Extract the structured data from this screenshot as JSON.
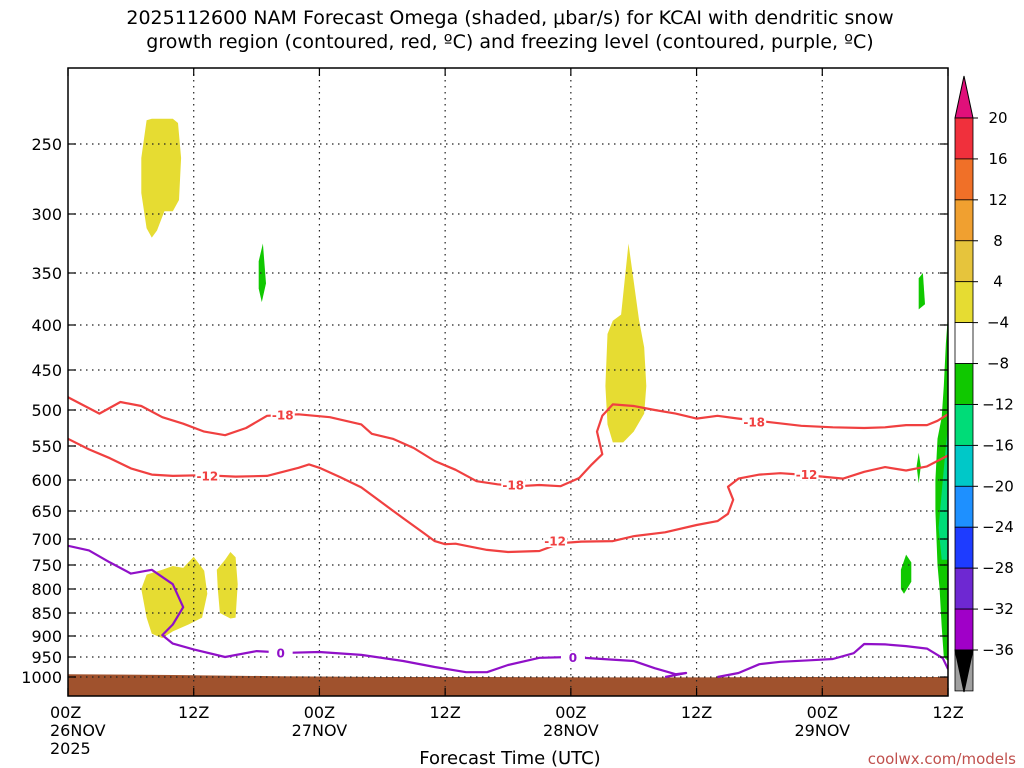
{
  "chart_data": {
    "type": "time-height cross-section (shaded + contours)",
    "title_line1": "2025112600 NAM Forecast Omega (shaded, μbar/s) for KCAI with dendritic snow",
    "title_line2": "growth region (contoured, red, ºC) and freezing level (contoured, purple, ºC)",
    "xlabel": "Forecast Time (UTC)",
    "credit": "coolwx.com/models",
    "x_range_hours": [
      0,
      84
    ],
    "x_ticks": [
      {
        "hour": 0,
        "lines": [
          "00Z",
          "26NOV",
          "2025"
        ]
      },
      {
        "hour": 12,
        "lines": [
          "12Z"
        ]
      },
      {
        "hour": 24,
        "lines": [
          "00Z",
          "27NOV"
        ]
      },
      {
        "hour": 36,
        "lines": [
          "12Z"
        ]
      },
      {
        "hour": 48,
        "lines": [
          "00Z",
          "28NOV"
        ]
      },
      {
        "hour": 60,
        "lines": [
          "12Z"
        ]
      },
      {
        "hour": 72,
        "lines": [
          "00Z",
          "29NOV"
        ]
      },
      {
        "hour": 84,
        "lines": [
          "12Z"
        ]
      }
    ],
    "y_range_hpa": [
      1050,
      200
    ],
    "y_ticks_hpa": [
      250,
      300,
      350,
      400,
      450,
      500,
      550,
      600,
      650,
      700,
      750,
      800,
      850,
      900,
      950,
      1000
    ],
    "y_tick_labels": [
      "250",
      "300",
      "350",
      "400",
      "450",
      "500",
      "550",
      "600",
      "650",
      "700",
      "750",
      "800",
      "850",
      "900",
      "950",
      "1000"
    ],
    "grid": true,
    "colorbar": {
      "labels": [
        "20",
        "16",
        "12",
        "8",
        "4",
        "−4",
        "−8",
        "−12",
        "−16",
        "−20",
        "−24",
        "−28",
        "−32",
        "−36"
      ],
      "top_color": "#e0107a",
      "bottom_color": "#000000",
      "bins": [
        {
          "color": "#f0303c"
        },
        {
          "color": "#f07028"
        },
        {
          "color": "#f0a030"
        },
        {
          "color": "#e6c43c"
        },
        {
          "color": "#e6dc32"
        },
        {
          "color": "#ffffff"
        },
        {
          "color": "#10c800"
        },
        {
          "color": "#00dc78"
        },
        {
          "color": "#00c8c8"
        },
        {
          "color": "#1e90ff"
        },
        {
          "color": "#1e3cff"
        },
        {
          "color": "#6e28d2"
        },
        {
          "color": "#a000c8"
        },
        {
          "color": "#a0a0a0"
        }
      ]
    },
    "contours": [
      {
        "name": "-18",
        "color": "#f04040",
        "labels": [
          {
            "text": "-18",
            "hour": 20.5,
            "p": 507
          },
          {
            "text": "-18",
            "hour": 42.5,
            "p": 608
          },
          {
            "text": "-18",
            "hour": 65.5,
            "p": 517
          }
        ],
        "points": [
          [
            0,
            484
          ],
          [
            3,
            505
          ],
          [
            5,
            490
          ],
          [
            7,
            495
          ],
          [
            9,
            510
          ],
          [
            11,
            519
          ],
          [
            13,
            530
          ],
          [
            15,
            535
          ],
          [
            17,
            525
          ],
          [
            19,
            508
          ],
          [
            22,
            506
          ],
          [
            25,
            510
          ],
          [
            28,
            520
          ],
          [
            29,
            533
          ],
          [
            31,
            540
          ],
          [
            33,
            553
          ],
          [
            35,
            572
          ],
          [
            37,
            585
          ],
          [
            39,
            602
          ],
          [
            41,
            607
          ],
          [
            43,
            610
          ],
          [
            45,
            608
          ],
          [
            47,
            610
          ],
          [
            48.8,
            597
          ],
          [
            50,
            577
          ],
          [
            51,
            562
          ],
          [
            50.5,
            530
          ],
          [
            51,
            508
          ],
          [
            52,
            493
          ],
          [
            54,
            495
          ],
          [
            56,
            500
          ],
          [
            58,
            505
          ],
          [
            60,
            512
          ],
          [
            62,
            508
          ],
          [
            64,
            512
          ],
          [
            67,
            517
          ],
          [
            70,
            522
          ],
          [
            73,
            524
          ],
          [
            76,
            525
          ],
          [
            78,
            524
          ],
          [
            80,
            521
          ],
          [
            82,
            521
          ],
          [
            83,
            515
          ],
          [
            84,
            506
          ]
        ]
      },
      {
        "name": "-12",
        "color": "#f04040",
        "labels": [
          {
            "text": "-12",
            "hour": 13.3,
            "p": 594
          },
          {
            "text": "-12",
            "hour": 46.5,
            "p": 704
          },
          {
            "text": "-12",
            "hour": 70.5,
            "p": 592
          }
        ],
        "points": [
          [
            0,
            540
          ],
          [
            2,
            555
          ],
          [
            4,
            568
          ],
          [
            6,
            583
          ],
          [
            8,
            592
          ],
          [
            10,
            594
          ],
          [
            13,
            593
          ],
          [
            16,
            595
          ],
          [
            19,
            594
          ],
          [
            22,
            582
          ],
          [
            23,
            577
          ],
          [
            24,
            582
          ],
          [
            26,
            596
          ],
          [
            28,
            612
          ],
          [
            30,
            637
          ],
          [
            32,
            663
          ],
          [
            34,
            690
          ],
          [
            35,
            704
          ],
          [
            36,
            710
          ],
          [
            37,
            709
          ],
          [
            38,
            713
          ],
          [
            40,
            721
          ],
          [
            42,
            725
          ],
          [
            45,
            723
          ],
          [
            47,
            708
          ],
          [
            49,
            705
          ],
          [
            52,
            704
          ],
          [
            54,
            695
          ],
          [
            57,
            688
          ],
          [
            60,
            675
          ],
          [
            62,
            668
          ],
          [
            63,
            655
          ],
          [
            63.5,
            632
          ],
          [
            63,
            611
          ],
          [
            64,
            598
          ],
          [
            66,
            592
          ],
          [
            68,
            590
          ],
          [
            70,
            592
          ],
          [
            72,
            595
          ],
          [
            74,
            598
          ],
          [
            76,
            588
          ],
          [
            78,
            581
          ],
          [
            80,
            586
          ],
          [
            82,
            580
          ],
          [
            84,
            564
          ]
        ]
      },
      {
        "name": "0",
        "color": "#9010c8",
        "labels": [
          {
            "text": "0",
            "hour": 20.3,
            "p": 940
          },
          {
            "text": "0",
            "hour": 48.2,
            "p": 951
          }
        ],
        "points": [
          [
            0,
            713
          ],
          [
            2,
            722
          ],
          [
            4,
            745
          ],
          [
            6,
            768
          ],
          [
            8,
            760
          ],
          [
            10,
            790
          ],
          [
            11,
            838
          ],
          [
            10,
            875
          ],
          [
            9,
            898
          ],
          [
            10,
            918
          ],
          [
            12,
            932
          ],
          [
            15,
            950
          ],
          [
            18,
            936
          ],
          [
            21,
            940
          ],
          [
            24,
            938
          ],
          [
            28,
            945
          ],
          [
            32,
            960
          ],
          [
            35,
            975
          ],
          [
            38,
            988
          ],
          [
            40,
            988
          ],
          [
            42,
            970
          ],
          [
            45,
            952
          ],
          [
            48,
            950
          ],
          [
            51,
            955
          ],
          [
            54,
            960
          ],
          [
            56,
            978
          ],
          [
            58,
            993
          ],
          [
            59,
            990
          ],
          [
            57,
            1000
          ]
        ]
      },
      {
        "name": "0b",
        "color": "#9010c8",
        "labels": [],
        "points": [
          [
            62,
            1000
          ],
          [
            64,
            990
          ],
          [
            66,
            968
          ],
          [
            68,
            962
          ],
          [
            71,
            958
          ],
          [
            73,
            955
          ],
          [
            75,
            941
          ],
          [
            76,
            919
          ],
          [
            78,
            920
          ],
          [
            80,
            924
          ],
          [
            82,
            930
          ],
          [
            83.5,
            953
          ],
          [
            84,
            980
          ]
        ]
      }
    ],
    "shaded_regions": [
      {
        "name": "omega-positive-4-8",
        "color": "#e6dc32",
        "points": [
          [
            7,
            260
          ],
          [
            7.5,
            233
          ],
          [
            8,
            232
          ],
          [
            10,
            232
          ],
          [
            10.5,
            235
          ],
          [
            10.8,
            260
          ],
          [
            10.6,
            290
          ],
          [
            10,
            298
          ],
          [
            9.2,
            298
          ],
          [
            8.5,
            314
          ],
          [
            8,
            320
          ],
          [
            7.5,
            312
          ],
          [
            7,
            285
          ]
        ]
      },
      {
        "name": "omega-positive-4-8",
        "color": "#e6dc32",
        "points": [
          [
            51.5,
            410
          ],
          [
            52,
            396
          ],
          [
            52.8,
            390
          ],
          [
            53.5,
            325
          ],
          [
            54.5,
            395
          ],
          [
            55,
            425
          ],
          [
            55.2,
            470
          ],
          [
            55,
            505
          ],
          [
            54,
            530
          ],
          [
            53,
            545
          ],
          [
            52,
            545
          ],
          [
            51.5,
            520
          ],
          [
            51.3,
            470
          ]
        ]
      },
      {
        "name": "omega-positive-4-8",
        "color": "#e6dc32",
        "points": [
          [
            7,
            800
          ],
          [
            7.5,
            770
          ],
          [
            9,
            760
          ],
          [
            10,
            752
          ],
          [
            11,
            756
          ],
          [
            12,
            734
          ],
          [
            13,
            762
          ],
          [
            13.3,
            810
          ],
          [
            12.8,
            860
          ],
          [
            11.5,
            875
          ],
          [
            10,
            890
          ],
          [
            9,
            905
          ],
          [
            8,
            895
          ],
          [
            7.5,
            860
          ]
        ]
      },
      {
        "name": "omega-positive-4-8",
        "color": "#e6dc32",
        "points": [
          [
            14.2,
            760
          ],
          [
            15,
            740
          ],
          [
            15.5,
            725
          ],
          [
            16,
            735
          ],
          [
            16.2,
            790
          ],
          [
            16,
            860
          ],
          [
            15.5,
            862
          ],
          [
            14.5,
            850
          ],
          [
            14.3,
            800
          ]
        ]
      },
      {
        "name": "omega-negative-4-8",
        "color": "#10c800",
        "points": [
          [
            18.2,
            340
          ],
          [
            18.6,
            325
          ],
          [
            18.9,
            360
          ],
          [
            18.5,
            378
          ],
          [
            18.2,
            365
          ]
        ]
      },
      {
        "name": "omega-negative-4-8",
        "color": "#10c800",
        "points": [
          [
            81.2,
            355
          ],
          [
            81.6,
            350
          ],
          [
            81.8,
            380
          ],
          [
            81.2,
            385
          ]
        ]
      },
      {
        "name": "omega-negative-4-8",
        "color": "#10c800",
        "points": [
          [
            79.5,
            760
          ],
          [
            80,
            730
          ],
          [
            80.5,
            745
          ],
          [
            80.5,
            785
          ],
          [
            79.8,
            810
          ],
          [
            79.5,
            800
          ]
        ]
      },
      {
        "name": "omega-negative-4-8",
        "color": "#10c800",
        "points": [
          [
            84,
            390
          ],
          [
            83.8,
            420
          ],
          [
            83.6,
            470
          ],
          [
            83.4,
            510
          ],
          [
            83,
            540
          ],
          [
            82.8,
            600
          ],
          [
            82.8,
            650
          ],
          [
            82.9,
            700
          ],
          [
            83,
            750
          ],
          [
            83.2,
            800
          ],
          [
            83.4,
            880
          ],
          [
            83.6,
            950
          ],
          [
            84,
            960
          ]
        ]
      },
      {
        "name": "omega-negative-8-12",
        "color": "#00dc78",
        "points": [
          [
            83.1,
            680
          ],
          [
            83.5,
            600
          ],
          [
            84,
            520
          ],
          [
            84,
            740
          ],
          [
            83.4,
            740
          ]
        ]
      },
      {
        "name": "omega-negative-4-8",
        "color": "#10c800",
        "points": [
          [
            81.0,
            580
          ],
          [
            81.2,
            560
          ],
          [
            81.4,
            580
          ],
          [
            81.2,
            605
          ]
        ]
      }
    ],
    "terrain": {
      "name": "ground",
      "color": "#a0522d",
      "top_p": [
        [
          0,
          993
        ],
        [
          10,
          995
        ],
        [
          20,
          998
        ],
        [
          30,
          1000
        ],
        [
          40,
          1000
        ],
        [
          50,
          1001
        ],
        [
          60,
          1001
        ],
        [
          70,
          1000
        ],
        [
          80,
          1000
        ],
        [
          84,
          1000
        ]
      ]
    }
  }
}
